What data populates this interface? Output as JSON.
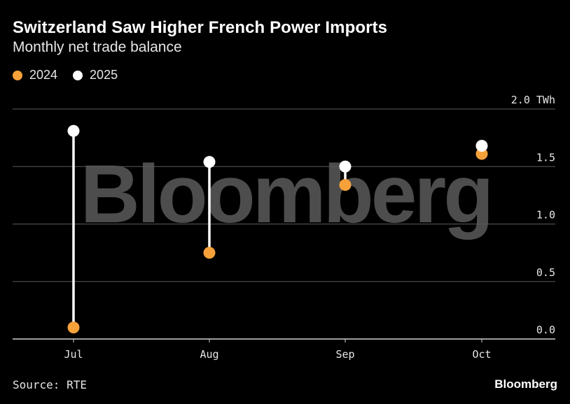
{
  "header": {
    "title": "Switzerland Saw Higher French Power Imports",
    "subtitle": "Monthly net trade balance"
  },
  "footer": {
    "source": "Source: RTE",
    "brand": "Bloomberg"
  },
  "watermark": "Bloomberg",
  "colors": {
    "series_2024": "#f7a13b",
    "series_2025": "#ffffff",
    "stem": "#ffffff",
    "grid": "#5a5a5a",
    "axis": "#d0d0d0",
    "text": "#e6e6e6"
  },
  "chart_data": {
    "type": "scatter",
    "subtype": "dumbbell",
    "title": "Switzerland Saw Higher French Power Imports",
    "subtitle": "Monthly net trade balance",
    "categories": [
      "Jul",
      "Aug",
      "Sep",
      "Oct"
    ],
    "series": [
      {
        "name": "2024",
        "values": [
          0.1,
          0.75,
          1.34,
          1.61
        ]
      },
      {
        "name": "2025",
        "values": [
          1.81,
          1.54,
          1.5,
          1.68
        ]
      }
    ],
    "y_ticks": [
      "0.0",
      "0.5",
      "1.0",
      "1.5",
      "2.0 TWh"
    ],
    "y_tick_values": [
      0,
      0.5,
      1.0,
      1.5,
      2.0
    ],
    "ylim": [
      0,
      2.0
    ],
    "xlabel": "",
    "ylabel": "",
    "grid": true,
    "legend": "top-left"
  }
}
